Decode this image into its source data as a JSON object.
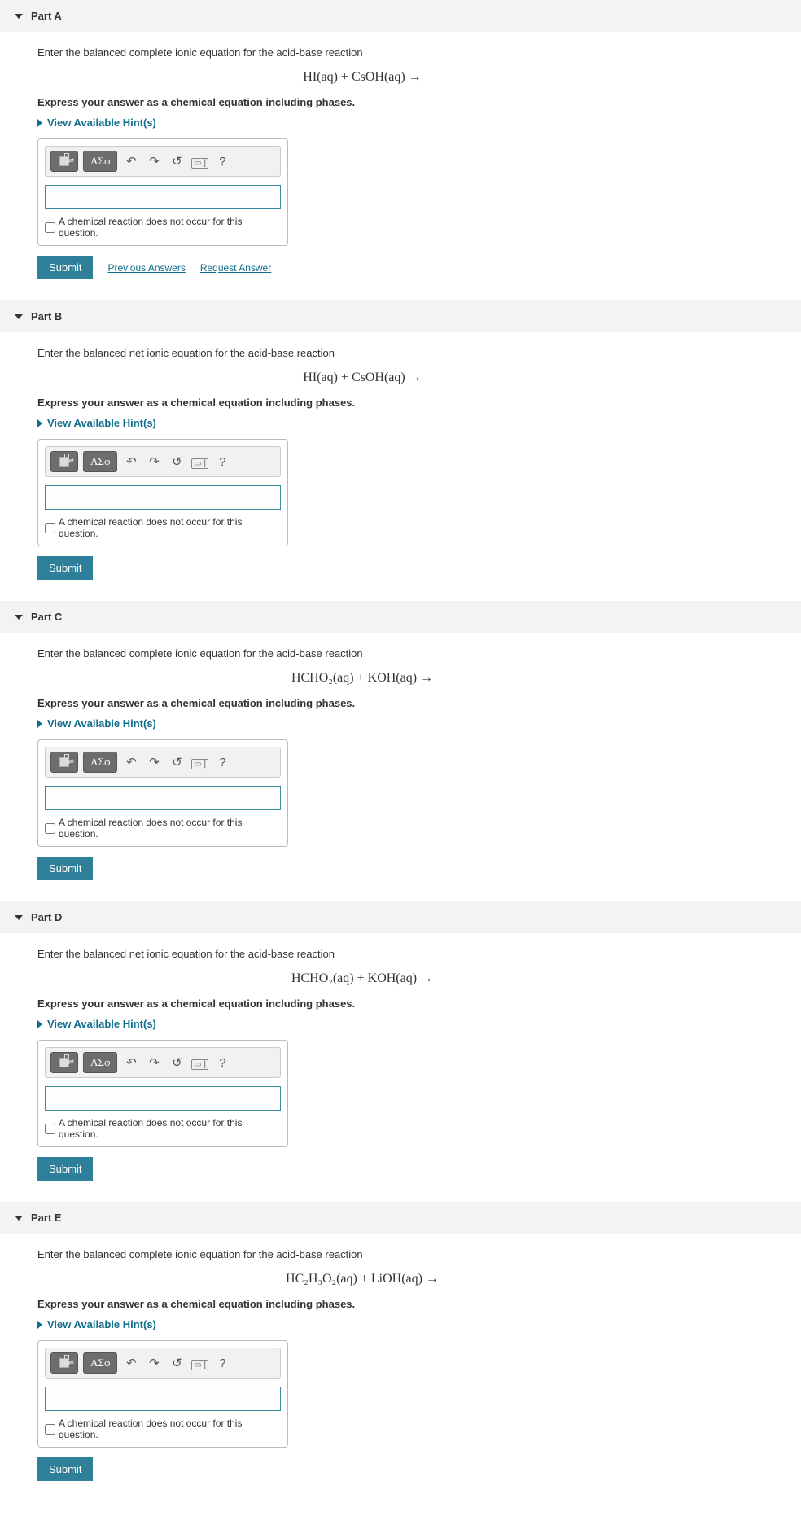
{
  "hints_label": "View Available Hint(s)",
  "instruction_text": "Express your answer as a chemical equation including phases.",
  "no_rxn_label": "A chemical reaction does not occur for this question.",
  "submit_label": "Submit",
  "prev_answers_label": "Previous Answers",
  "request_answer_label": "Request Answer",
  "toolbar": {
    "greek": "ΑΣφ",
    "undo": "↶",
    "redo": "↷",
    "reset": "↺",
    "kbd": "▭ ]",
    "help": "?"
  },
  "parts": {
    "A": {
      "title": "Part A",
      "prompt": "Enter the balanced complete ionic equation for the acid-base reaction",
      "equation": "HI(aq) + CsOH(aq) →",
      "show_links": true,
      "focused": true
    },
    "B": {
      "title": "Part B",
      "prompt": "Enter the balanced net ionic equation for the acid-base reaction",
      "equation": "HI(aq)  +  CsOH(aq) →",
      "show_links": false,
      "focused": false
    },
    "C": {
      "title": "Part C",
      "prompt": "Enter the balanced complete ionic equation for the acid-base reaction",
      "equation": "HCHO₂(aq)  +  KOH(aq) →",
      "show_links": false,
      "focused": false
    },
    "D": {
      "title": "Part D",
      "prompt": "Enter the balanced net ionic equation for the acid-base reaction",
      "equation": "HCHO₂(aq)  +  KOH(aq) →",
      "show_links": false,
      "focused": false
    },
    "E": {
      "title": "Part E",
      "prompt": "Enter the balanced complete ionic equation for the acid-base reaction",
      "equation": "HC₂H₃O₂(aq)  +  LiOH(aq) →",
      "show_links": false,
      "focused": false
    }
  }
}
